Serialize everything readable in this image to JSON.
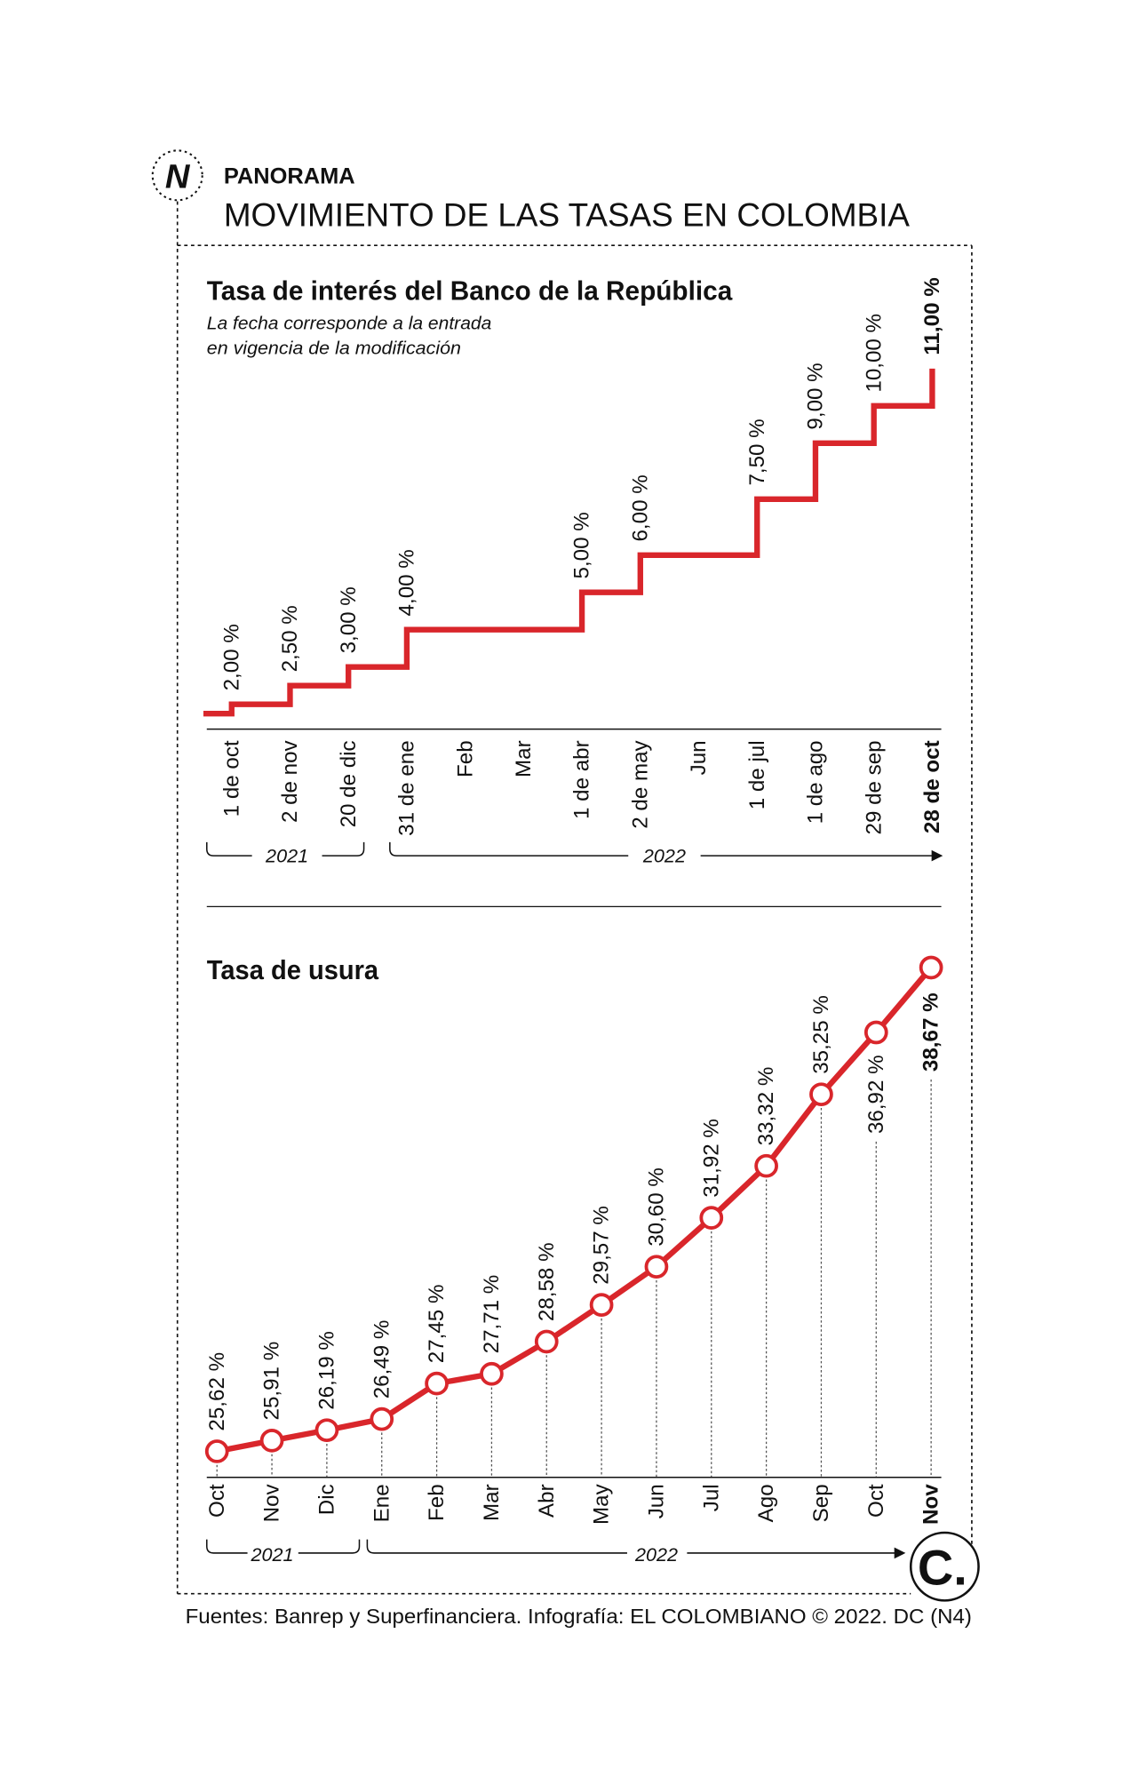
{
  "header": {
    "section": "PANORAMA",
    "title": "MOVIMIENTO DE LAS TASAS EN COLOMBIA",
    "logo_letter": "N"
  },
  "colors": {
    "line": "#d9262b",
    "text": "#111111"
  },
  "chart_data": [
    {
      "type": "line",
      "style": "step",
      "title": "Tasa de interés del Banco de la República",
      "subtitle_lines": [
        "La fecha corresponde a la entrada",
        "en vigencia de la modificación"
      ],
      "categories": [
        "1 de oct",
        "2 de nov",
        "20 de dic",
        "31 de ene",
        "Feb",
        "Mar",
        "1 de abr",
        "2 de may",
        "Jun",
        "1 de jul",
        "1 de ago",
        "29 de sep",
        "28 de oct"
      ],
      "start_value": 1.75,
      "steps": [
        {
          "category": "1 de oct",
          "value": 2.0,
          "label": "2,00 %"
        },
        {
          "category": "2 de nov",
          "value": 2.5,
          "label": "2,50 %"
        },
        {
          "category": "20 de dic",
          "value": 3.0,
          "label": "3,00 %"
        },
        {
          "category": "31 de ene",
          "value": 4.0,
          "label": "4,00 %"
        },
        {
          "category": "1 de abr",
          "value": 5.0,
          "label": "5,00 %"
        },
        {
          "category": "2 de may",
          "value": 6.0,
          "label": "6,00 %"
        },
        {
          "category": "1 de jul",
          "value": 7.5,
          "label": "7,50 %"
        },
        {
          "category": "1 de ago",
          "value": 9.0,
          "label": "9,00 %"
        },
        {
          "category": "29 de sep",
          "value": 10.0,
          "label": "10,00 %"
        },
        {
          "category": "28 de oct",
          "value": 11.0,
          "label": "11,00 %",
          "bold": true
        }
      ],
      "years": [
        {
          "label": "2021"
        },
        {
          "label": "2022"
        }
      ],
      "highlight_category": "28 de oct"
    },
    {
      "type": "line",
      "title": "Tasa de usura",
      "categories": [
        "Oct",
        "Nov",
        "Dic",
        "Ene",
        "Feb",
        "Mar",
        "Abr",
        "May",
        "Jun",
        "Jul",
        "Ago",
        "Sep",
        "Oct",
        "Nov"
      ],
      "values": [
        25.62,
        25.91,
        26.19,
        26.49,
        27.45,
        27.71,
        28.58,
        29.57,
        30.6,
        31.92,
        33.32,
        35.25,
        36.92,
        38.67
      ],
      "labels": [
        "25,62 %",
        "25,91 %",
        "26,19 %",
        "26,49 %",
        "27,45 %",
        "27,71 %",
        "28,58 %",
        "29,57 %",
        "30,60 %",
        "31,92 %",
        "33,32 %",
        "35,25 %",
        "36,92 %",
        "38,67 %"
      ],
      "years": [
        {
          "label": "2021"
        },
        {
          "label": "2022"
        }
      ],
      "highlight_category": "Nov"
    }
  ],
  "footer": {
    "source": "Fuentes: Banrep y Superfinanciera. Infografía: EL COLOMBIANO © 2022. DC (N4)",
    "brand_logo": "C."
  }
}
